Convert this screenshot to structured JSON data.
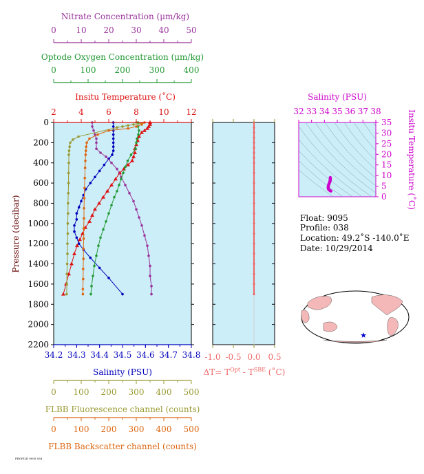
{
  "chart_data": [
    {
      "type": "line",
      "id": "main-profile",
      "y_axis": {
        "label": "Pressure (decibar)",
        "range": [
          2200,
          0
        ],
        "ticks": [
          0,
          200,
          400,
          600,
          800,
          1000,
          1200,
          1400,
          1600,
          1800,
          2000,
          2200
        ],
        "inverted": true
      },
      "top_axes": [
        {
          "key": "nitrate",
          "label": "Nitrate Concentration (μm/kg)",
          "range": [
            0,
            50
          ],
          "ticks": [
            "0",
            "10",
            "20",
            "30",
            "40",
            "50"
          ],
          "color": "#993399"
        },
        {
          "key": "oxygen",
          "label": "Optode Oxygen Concentration (μm/kg)",
          "range": [
            0,
            400
          ],
          "ticks": [
            "0",
            "100",
            "200",
            "300",
            "400"
          ],
          "color": "#229933"
        },
        {
          "key": "temperature",
          "label": "Insitu Temperature (˚C)",
          "range": [
            2,
            12
          ],
          "ticks": [
            "2",
            "4",
            "6",
            "8",
            "10",
            "12"
          ],
          "color": "#dd1111"
        }
      ],
      "bottom_axes": [
        {
          "key": "salinity",
          "label": "Salinity (PSU)",
          "range": [
            34.2,
            34.8
          ],
          "ticks": [
            "34.2",
            "34.3",
            "34.4",
            "34.5",
            "34.6",
            "34.7",
            "34.8"
          ],
          "color": "#0000bb"
        },
        {
          "key": "fluorescence",
          "label": "FLBB Fluorescence channel (counts)",
          "range": [
            0,
            500
          ],
          "ticks": [
            "0",
            "100",
            "200",
            "300",
            "400",
            "500"
          ],
          "color": "#999933"
        },
        {
          "key": "backscatter",
          "label": "FLBB Backscatter channel (counts)",
          "range": [
            0,
            500
          ],
          "ticks": [
            "0",
            "100",
            "200",
            "300",
            "400",
            "500"
          ],
          "color": "#dd6611"
        }
      ],
      "background": "#cceef8",
      "series": [
        {
          "key": "temperature",
          "color": "#dd1111",
          "marker": "triangle",
          "points": [
            [
              9.0,
              0
            ],
            [
              9.0,
              20
            ],
            [
              8.9,
              40
            ],
            [
              8.8,
              60
            ],
            [
              8.6,
              80
            ],
            [
              8.4,
              100
            ],
            [
              8.2,
              140
            ],
            [
              8.1,
              180
            ],
            [
              8.0,
              220
            ],
            [
              7.9,
              260
            ],
            [
              7.9,
              300
            ],
            [
              7.8,
              340
            ],
            [
              7.7,
              380
            ],
            [
              7.4,
              420
            ],
            [
              7.1,
              460
            ],
            [
              6.8,
              500
            ],
            [
              6.5,
              560
            ],
            [
              6.2,
              620
            ],
            [
              5.9,
              680
            ],
            [
              5.6,
              740
            ],
            [
              5.3,
              800
            ],
            [
              5.0,
              860
            ],
            [
              4.8,
              920
            ],
            [
              4.6,
              980
            ],
            [
              4.3,
              1040
            ],
            [
              4.1,
              1100
            ],
            [
              3.9,
              1160
            ],
            [
              3.7,
              1220
            ],
            [
              3.5,
              1300
            ],
            [
              3.3,
              1400
            ],
            [
              3.1,
              1500
            ],
            [
              2.9,
              1600
            ],
            [
              2.7,
              1700
            ]
          ]
        },
        {
          "key": "salinity",
          "color": "#0000bb",
          "marker": "circle",
          "points": [
            [
              34.46,
              0
            ],
            [
              34.46,
              40
            ],
            [
              34.46,
              80
            ],
            [
              34.46,
              120
            ],
            [
              34.46,
              160
            ],
            [
              34.46,
              200
            ],
            [
              34.46,
              240
            ],
            [
              34.46,
              280
            ],
            [
              34.455,
              320
            ],
            [
              34.44,
              360
            ],
            [
              34.42,
              420
            ],
            [
              34.4,
              480
            ],
            [
              34.38,
              540
            ],
            [
              34.36,
              600
            ],
            [
              34.34,
              660
            ],
            [
              34.33,
              720
            ],
            [
              34.32,
              780
            ],
            [
              34.31,
              840
            ],
            [
              34.3,
              900
            ],
            [
              34.3,
              960
            ],
            [
              34.29,
              1020
            ],
            [
              34.29,
              1080
            ],
            [
              34.3,
              1140
            ],
            [
              34.31,
              1200
            ],
            [
              34.33,
              1260
            ],
            [
              34.36,
              1340
            ],
            [
              34.4,
              1440
            ],
            [
              34.44,
              1540
            ],
            [
              34.5,
              1700
            ]
          ]
        },
        {
          "key": "nitrate",
          "color": "#993399",
          "marker": "circle",
          "points": [
            [
              14,
              0
            ],
            [
              14,
              40
            ],
            [
              14.5,
              80
            ],
            [
              15,
              120
            ],
            [
              15.5,
              160
            ],
            [
              15.5,
              200
            ],
            [
              15.5,
              260
            ],
            [
              17,
              300
            ],
            [
              19,
              340
            ],
            [
              21,
              400
            ],
            [
              23,
              460
            ],
            [
              24.5,
              540
            ],
            [
              26,
              620
            ],
            [
              27.5,
              700
            ],
            [
              29,
              780
            ],
            [
              30,
              860
            ],
            [
              31,
              940
            ],
            [
              32,
              1020
            ],
            [
              33,
              1120
            ],
            [
              34,
              1220
            ],
            [
              34.5,
              1320
            ],
            [
              35,
              1420
            ],
            [
              35,
              1520
            ],
            [
              35.5,
              1620
            ],
            [
              35.5,
              1700
            ]
          ]
        },
        {
          "key": "oxygen",
          "color": "#229933",
          "marker": "circle",
          "points": [
            [
              245,
              0
            ],
            [
              245,
              40
            ],
            [
              248,
              80
            ],
            [
              246,
              120
            ],
            [
              242,
              160
            ],
            [
              240,
              200
            ],
            [
              238,
              260
            ],
            [
              225,
              320
            ],
            [
              215,
              380
            ],
            [
              208,
              440
            ],
            [
              202,
              500
            ],
            [
              196,
              560
            ],
            [
              190,
              620
            ],
            [
              184,
              680
            ],
            [
              176,
              740
            ],
            [
              168,
              820
            ],
            [
              160,
              900
            ],
            [
              152,
              980
            ],
            [
              144,
              1060
            ],
            [
              136,
              1140
            ],
            [
              130,
              1220
            ],
            [
              124,
              1320
            ],
            [
              118,
              1420
            ],
            [
              114,
              1520
            ],
            [
              110,
              1620
            ],
            [
              108,
              1700
            ]
          ]
        },
        {
          "key": "fluorescence",
          "color": "#999933",
          "marker": "circle",
          "points": [
            [
              300,
              0
            ],
            [
              320,
              10
            ],
            [
              290,
              20
            ],
            [
              270,
              30
            ],
            [
              250,
              40
            ],
            [
              230,
              50
            ],
            [
              90,
              140
            ],
            [
              70,
              170
            ],
            [
              60,
              200
            ],
            [
              58,
              240
            ],
            [
              56,
              280
            ],
            [
              55,
              320
            ],
            [
              55,
              400
            ],
            [
              54,
              500
            ],
            [
              54,
              600
            ],
            [
              53,
              700
            ],
            [
              52,
              800
            ],
            [
              52,
              900
            ],
            [
              51,
              1000
            ],
            [
              51,
              1100
            ],
            [
              50,
              1200
            ],
            [
              50,
              1300
            ],
            [
              49,
              1400
            ],
            [
              48,
              1500
            ],
            [
              48,
              1600
            ],
            [
              47,
              1700
            ]
          ]
        },
        {
          "key": "backscatter",
          "color": "#dd6611",
          "marker": "circle",
          "points": [
            [
              330,
              0
            ],
            [
              320,
              20
            ],
            [
              300,
              40
            ],
            [
              270,
              60
            ],
            [
              200,
              80
            ],
            [
              160,
              120
            ],
            [
              130,
              160
            ],
            [
              120,
              200
            ],
            [
              118,
              240
            ],
            [
              117,
              280
            ],
            [
              116,
              320
            ],
            [
              115,
              380
            ],
            [
              114,
              450
            ],
            [
              113,
              550
            ],
            [
              112,
              650
            ],
            [
              111,
              750
            ],
            [
              110,
              850
            ],
            [
              110,
              950
            ],
            [
              109,
              1050
            ],
            [
              109,
              1150
            ],
            [
              108,
              1250
            ],
            [
              108,
              1350
            ],
            [
              107,
              1450
            ],
            [
              107,
              1550
            ],
            [
              106,
              1650
            ],
            [
              106,
              1700
            ]
          ]
        }
      ]
    },
    {
      "type": "line",
      "id": "delta-t",
      "x_axis": {
        "label": "ΔT= T^Opt - T^SBE (˚C)",
        "range": [
          -1.0,
          0.5
        ],
        "ticks": [
          "-1.0",
          "-0.5",
          "0.0",
          "0.5"
        ]
      },
      "y_axis": {
        "range": [
          2200,
          0
        ],
        "inverted": true
      },
      "color": "#ee6666",
      "series": [
        {
          "name": "delta-t",
          "points": [
            [
              0.0,
              0
            ],
            [
              0.0,
              50
            ],
            [
              0.0,
              100
            ],
            [
              0.0,
              150
            ],
            [
              0.0,
              200
            ],
            [
              0.0,
              250
            ],
            [
              0.0,
              300
            ],
            [
              0.0,
              350
            ],
            [
              0.0,
              400
            ],
            [
              0.0,
              500
            ],
            [
              0.0,
              600
            ],
            [
              0.0,
              700
            ],
            [
              0.0,
              800
            ],
            [
              0.0,
              900
            ],
            [
              0.0,
              1000
            ],
            [
              0.0,
              1100
            ],
            [
              0.0,
              1200
            ],
            [
              0.0,
              1300
            ],
            [
              0.0,
              1400
            ],
            [
              0.0,
              1500
            ],
            [
              0.0,
              1600
            ],
            [
              0.0,
              1700
            ]
          ]
        }
      ]
    },
    {
      "type": "scatter",
      "id": "ts-diagram",
      "title": "Salinity (PSU)",
      "x_axis": {
        "label": "Salinity (PSU)",
        "range": [
          32,
          38
        ],
        "ticks": [
          "32",
          "33",
          "34",
          "35",
          "36",
          "37",
          "38"
        ]
      },
      "y_axis": {
        "label": "Insitu Temperature (˚C)",
        "range": [
          0,
          35
        ],
        "ticks": [
          "0",
          "5",
          "10",
          "15",
          "20",
          "25",
          "30",
          "35"
        ]
      },
      "color": "#cc00cc",
      "points": [
        [
          34.46,
          9.0
        ],
        [
          34.46,
          8.5
        ],
        [
          34.46,
          8.0
        ],
        [
          34.44,
          7.5
        ],
        [
          34.42,
          7.0
        ],
        [
          34.38,
          6.4
        ],
        [
          34.34,
          5.8
        ],
        [
          34.31,
          5.2
        ],
        [
          34.3,
          4.7
        ],
        [
          34.29,
          4.2
        ],
        [
          34.31,
          3.7
        ],
        [
          34.36,
          3.3
        ],
        [
          34.44,
          2.9
        ],
        [
          34.5,
          2.7
        ]
      ]
    }
  ],
  "info": {
    "float": "Float:  9095",
    "profile": "Profile:  038",
    "location": "Location:  49.2˚S  -140.0˚E",
    "date": "Date:  10/29/2014"
  },
  "colors": {
    "map_land": "#f4b8b8",
    "map_ocean": "#ffffff",
    "marker": "#0000cc"
  },
  "footer_text": "PROFILE 9095 038"
}
